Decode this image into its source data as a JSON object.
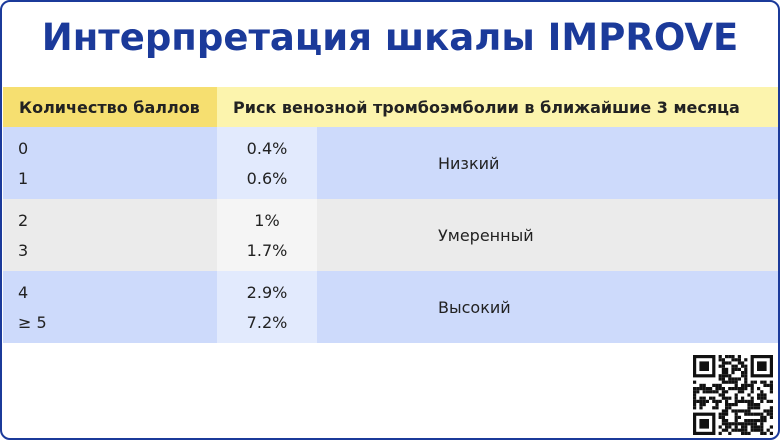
{
  "title": "Интерпретация шкалы IMPROVE",
  "table": {
    "header": [
      "Количество баллов",
      "Риск венозной тромбоэмболии в ближайшие 3 месяца"
    ],
    "rows": [
      {
        "scores": [
          "0",
          "1"
        ],
        "risks": [
          "0.4%",
          "0.6%"
        ],
        "level": "Низкий"
      },
      {
        "scores": [
          "2",
          "3"
        ],
        "risks": [
          "1%",
          "1.7%"
        ],
        "level": "Умеренный"
      },
      {
        "scores": [
          "4",
          "≥ 5"
        ],
        "risks": [
          "2.9%",
          "7.2%"
        ],
        "level": "Высокий"
      }
    ]
  }
}
